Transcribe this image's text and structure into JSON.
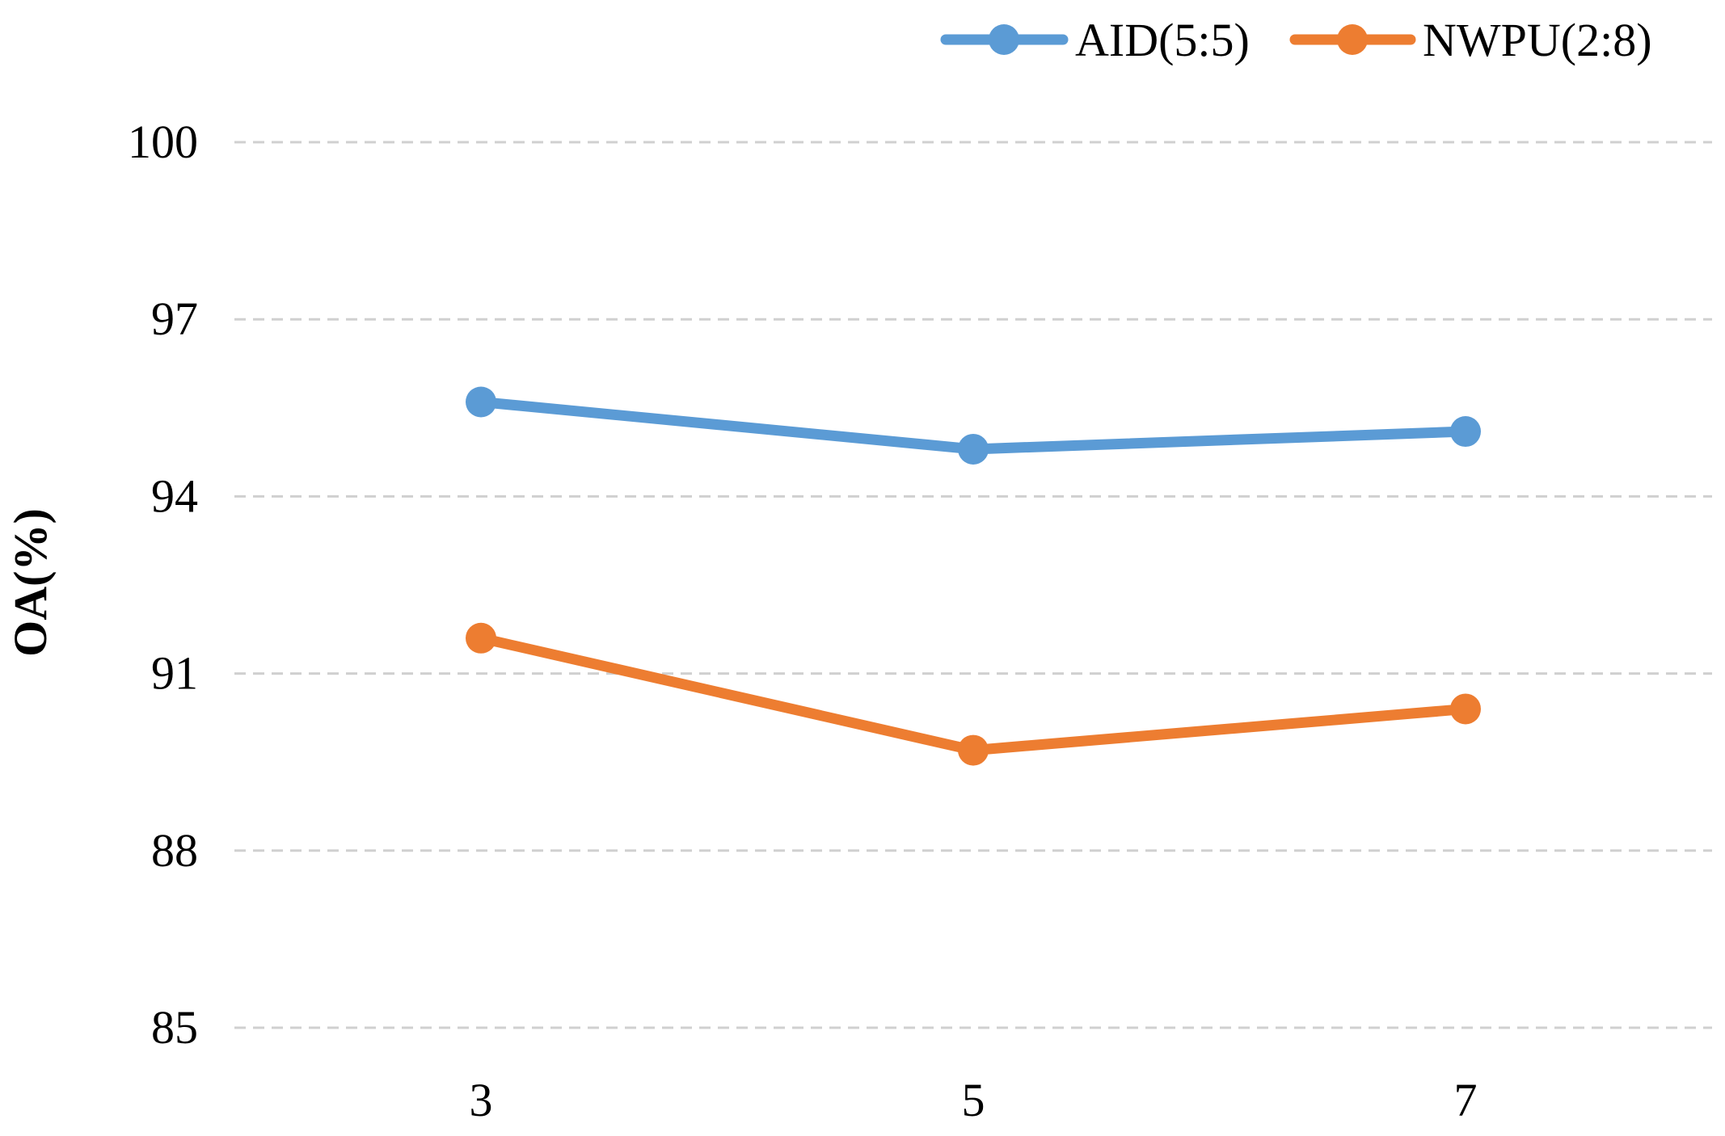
{
  "chart_data": {
    "type": "line",
    "title": "",
    "xlabel": "",
    "ylabel": "OA(%)",
    "categories": [
      "3",
      "5",
      "7"
    ],
    "yticks": [
      "85",
      "88",
      "91",
      "94",
      "97",
      "100"
    ],
    "ylim": [
      85,
      100
    ],
    "grid": true,
    "grid_style": "dashed",
    "legend_position": "top-right",
    "series": [
      {
        "name": "AID(5:5)",
        "values": [
          95.6,
          94.8,
          95.1
        ],
        "color": "#5b9bd5"
      },
      {
        "name": "NWPU(2:8)",
        "values": [
          91.6,
          89.7,
          90.4
        ],
        "color": "#ed7d31"
      }
    ]
  },
  "colors": {
    "grid": "#d0d0d0",
    "text": "#000000"
  }
}
